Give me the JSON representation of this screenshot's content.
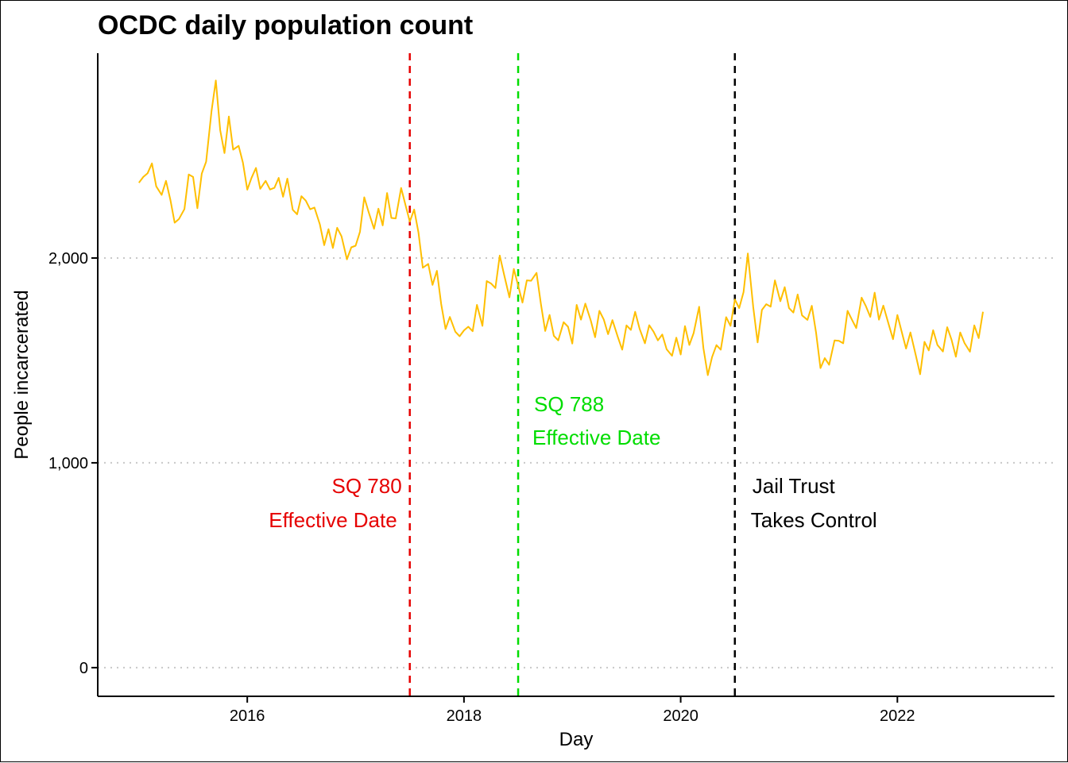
{
  "chart_data": {
    "type": "line",
    "title": "OCDC daily population count",
    "xlabel": "Day",
    "ylabel": "People incarcerated",
    "x_ticks": [
      2016,
      2018,
      2020,
      2022
    ],
    "x_tick_labels": [
      "2016",
      "2018",
      "2020",
      "2022"
    ],
    "y_ticks": [
      0,
      1000,
      2000
    ],
    "y_tick_labels": [
      "0",
      "1,000",
      "2,000"
    ],
    "xlim": [
      2014.62,
      2023.45
    ],
    "ylim": [
      -140,
      3000
    ],
    "grid": "horizontal dotted",
    "legend": "none",
    "series": [
      {
        "color": "#FFBF00",
        "x": [
          2015.0,
          2015.04,
          2015.08,
          2015.12,
          2015.16,
          2015.21,
          2015.25,
          2015.29,
          2015.33,
          2015.37,
          2015.42,
          2015.46,
          2015.5,
          2015.54,
          2015.58,
          2015.62,
          2015.67,
          2015.71,
          2015.75,
          2015.79,
          2015.83,
          2015.87,
          2015.92,
          2015.96,
          2016.0,
          2016.04,
          2016.08,
          2016.12,
          2016.17,
          2016.21,
          2016.25,
          2016.29,
          2016.33,
          2016.37,
          2016.42,
          2016.46,
          2016.5,
          2016.54,
          2016.58,
          2016.62,
          2016.67,
          2016.71,
          2016.75,
          2016.79,
          2016.83,
          2016.87,
          2016.92,
          2016.96,
          2017.0,
          2017.04,
          2017.08,
          2017.12,
          2017.17,
          2017.21,
          2017.25,
          2017.29,
          2017.33,
          2017.37,
          2017.42,
          2017.46,
          2017.5,
          2017.54,
          2017.58,
          2017.62,
          2017.67,
          2017.71,
          2017.75,
          2017.79,
          2017.83,
          2017.87,
          2017.92,
          2017.96,
          2018.0,
          2018.04,
          2018.08,
          2018.12,
          2018.17,
          2018.21,
          2018.25,
          2018.29,
          2018.33,
          2018.37,
          2018.42,
          2018.46,
          2018.5,
          2018.54,
          2018.58,
          2018.62,
          2018.67,
          2018.71,
          2018.75,
          2018.79,
          2018.83,
          2018.87,
          2018.92,
          2018.96,
          2019.0,
          2019.04,
          2019.08,
          2019.12,
          2019.17,
          2019.21,
          2019.25,
          2019.29,
          2019.33,
          2019.37,
          2019.42,
          2019.46,
          2019.5,
          2019.54,
          2019.58,
          2019.62,
          2019.67,
          2019.71,
          2019.75,
          2019.79,
          2019.83,
          2019.87,
          2019.92,
          2019.96,
          2020.0,
          2020.04,
          2020.08,
          2020.12,
          2020.17,
          2020.21,
          2020.25,
          2020.29,
          2020.33,
          2020.37,
          2020.42,
          2020.46,
          2020.5,
          2020.54,
          2020.58,
          2020.62,
          2020.67,
          2020.71,
          2020.75,
          2020.79,
          2020.83,
          2020.87,
          2020.92,
          2020.96,
          2021.0,
          2021.04,
          2021.08,
          2021.12,
          2021.17,
          2021.21,
          2021.25,
          2021.29,
          2021.33,
          2021.37,
          2021.42,
          2021.46,
          2021.5,
          2021.54,
          2021.58,
          2021.62,
          2021.67,
          2021.71,
          2021.75,
          2021.79,
          2021.83,
          2021.87,
          2021.92,
          2021.96,
          2022.0,
          2022.04,
          2022.08,
          2022.12,
          2022.17,
          2022.21,
          2022.25,
          2022.29,
          2022.33,
          2022.37,
          2022.42,
          2022.46,
          2022.5,
          2022.54,
          2022.58,
          2022.62,
          2022.67,
          2022.71,
          2022.75,
          2022.79
        ],
        "y": [
          2290,
          2380,
          2460,
          2400,
          2350,
          2370,
          2330,
          2300,
          2250,
          2160,
          2270,
          2330,
          2380,
          2290,
          2350,
          2470,
          2780,
          2820,
          2640,
          2590,
          2660,
          2560,
          2470,
          2450,
          2380,
          2330,
          2440,
          2400,
          2330,
          2350,
          2420,
          2360,
          2330,
          2310,
          2220,
          2260,
          2240,
          2280,
          2300,
          2200,
          2180,
          2140,
          2110,
          2080,
          2070,
          2090,
          2040,
          1990,
          2060,
          2190,
          2250,
          2240,
          2220,
          2210,
          2190,
          2240,
          2180,
          2240,
          2280,
          2260,
          2240,
          2190,
          2140,
          2030,
          1940,
          1900,
          1860,
          1760,
          1700,
          1650,
          1640,
          1680,
          1600,
          1680,
          1720,
          1740,
          1700,
          1810,
          1860,
          1900,
          1950,
          1920,
          1870,
          1900,
          1880,
          1860,
          1860,
          1920,
          1850,
          1760,
          1690,
          1660,
          1620,
          1660,
          1640,
          1680,
          1660,
          1740,
          1730,
          1700,
          1680,
          1660,
          1680,
          1700,
          1690,
          1650,
          1630,
          1630,
          1640,
          1680,
          1660,
          1640,
          1630,
          1610,
          1640,
          1660,
          1580,
          1570,
          1600,
          1580,
          1560,
          1590,
          1560,
          1680,
          1700,
          1560,
          1490,
          1470,
          1590,
          1630,
          1680,
          1700,
          1720,
          1740,
          1880,
          1960,
          1760,
          1650,
          1700,
          1790,
          1840,
          1860,
          1820,
          1780,
          1740,
          1780,
          1760,
          1720,
          1760,
          1720,
          1650,
          1540,
          1480,
          1510,
          1520,
          1580,
          1630,
          1680,
          1700,
          1720,
          1760,
          1780,
          1790,
          1800,
          1730,
          1690,
          1660,
          1650,
          1660,
          1640,
          1620,
          1590,
          1540,
          1510,
          1560,
          1580,
          1570,
          1560,
          1590,
          1600,
          1600,
          1580,
          1590,
          1600,
          1620,
          1640,
          1640,
          1660
        ]
      }
    ],
    "vlines": [
      {
        "x": 2017.5,
        "color": "#E60000",
        "dash": "dashed",
        "label": [
          "SQ 780",
          "Effective Date"
        ]
      },
      {
        "x": 2018.5,
        "color": "#00DD00",
        "dash": "dashed",
        "label": [
          "SQ 788",
          "Effective Date"
        ]
      },
      {
        "x": 2020.5,
        "color": "#000000",
        "dash": "dashed",
        "label": [
          "Jail Trust",
          "Takes Control"
        ]
      }
    ]
  }
}
